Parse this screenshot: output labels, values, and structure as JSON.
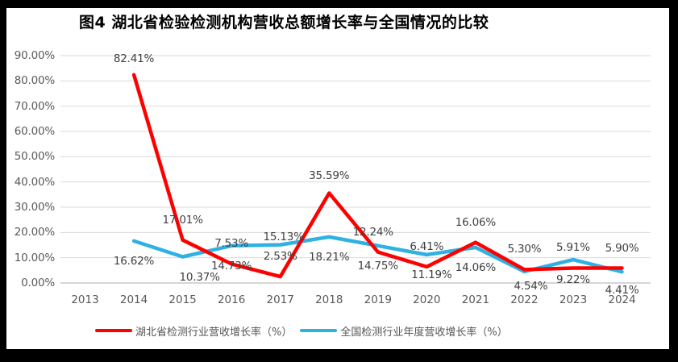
{
  "window": {
    "outer_background": "#000000",
    "frame_background": "#ffffff"
  },
  "chart_data": {
    "type": "line",
    "title": "图4 湖北省检验检测机构营收总额增长率与全国情况的比较",
    "categories": [
      "2013",
      "2014",
      "2015",
      "2016",
      "2017",
      "2018",
      "2019",
      "2020",
      "2021",
      "2022",
      "2023",
      "2024"
    ],
    "series": [
      {
        "name": "湖北省检测行业营收增长率（%）",
        "color": "#FE0000",
        "values": [
          null,
          82.41,
          17.01,
          7.53,
          2.53,
          35.59,
          12.24,
          6.41,
          16.06,
          5.3,
          5.91,
          5.9
        ],
        "point_labels": [
          "",
          "82.41%",
          "17.01%",
          "7.53%",
          "2.53%",
          "35.59%",
          "12.24%",
          "6.41%",
          "16.06%",
          "5.30%",
          "5.91%",
          "5.90%"
        ],
        "label_side": "above"
      },
      {
        "name": "全国检测行业年度营收增长率（%）",
        "color": "#2FB1E3",
        "values": [
          null,
          16.62,
          10.37,
          14.73,
          15.13,
          18.21,
          14.75,
          11.19,
          14.06,
          4.54,
          9.22,
          4.41
        ],
        "point_labels": [
          "",
          "16.62%",
          "10.37%",
          "14.73%",
          "15.13%",
          "18.21%",
          "14.75%",
          "11.19%",
          "14.06%",
          "4.54%",
          "9.22%",
          "4.41%"
        ],
        "label_side": "below"
      }
    ],
    "y_axis": {
      "tick_labels": [
        "0.00%",
        "10.00%",
        "20.00%",
        "30.00%",
        "40.00%",
        "50.00%",
        "60.00%",
        "70.00%",
        "80.00%",
        "90.00%"
      ],
      "min": 0,
      "max": 90,
      "step": 10
    },
    "x_axis_label": "",
    "y_axis_label": "",
    "grid": true,
    "legend_position": "bottom",
    "colors": {
      "gridline": "#D9D9D9",
      "axis_line": "#C9C9C9",
      "tick_text": "#595959",
      "data_label_text": "#404040",
      "legend_text": "#555555",
      "title_text": "#000000"
    }
  }
}
